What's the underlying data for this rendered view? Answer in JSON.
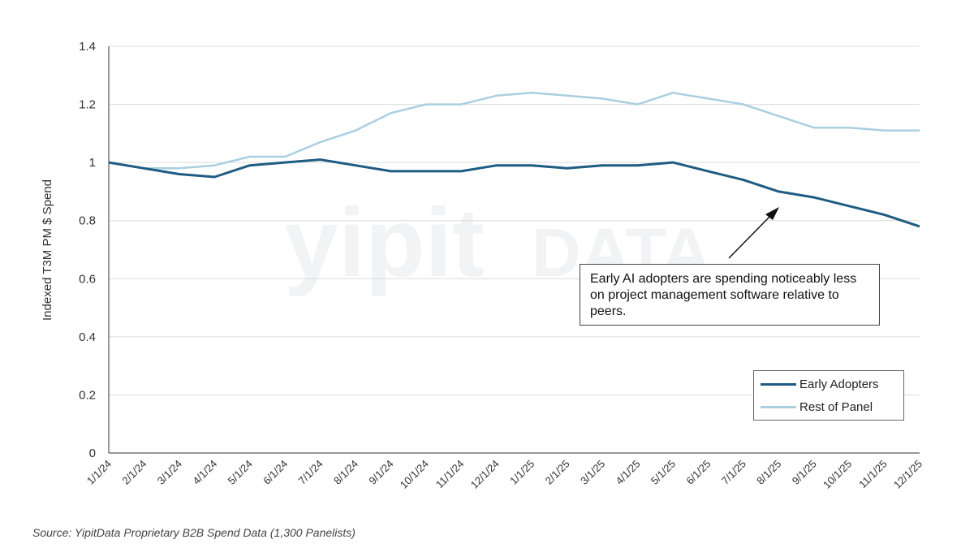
{
  "chart_data": {
    "type": "line",
    "ylabel": "Indexed T3M PM $ Spend",
    "ylim": [
      0,
      1.4
    ],
    "yticks": [
      "0",
      "0.2",
      "0.4",
      "0.6",
      "0.8",
      "1",
      "1.2",
      "1.4"
    ],
    "grid": true,
    "legend_position": "bottom-right",
    "categories": [
      "1/1/24",
      "2/1/24",
      "3/1/24",
      "4/1/24",
      "5/1/24",
      "6/1/24",
      "7/1/24",
      "8/1/24",
      "9/1/24",
      "10/1/24",
      "11/1/24",
      "12/1/24",
      "1/1/25",
      "2/1/25",
      "3/1/25",
      "4/1/25",
      "5/1/25",
      "6/1/25",
      "7/1/25",
      "8/1/25",
      "9/1/25",
      "10/1/25",
      "11/1/25",
      "12/1/25"
    ],
    "series": [
      {
        "name": "Early Adopters",
        "color": "#1f5c82",
        "values": [
          1.0,
          0.98,
          0.96,
          0.95,
          0.99,
          1.0,
          1.01,
          0.99,
          0.97,
          0.97,
          0.97,
          0.99,
          0.99,
          0.98,
          0.99,
          0.99,
          1.0,
          0.97,
          0.94,
          0.9,
          0.88,
          0.85,
          0.82,
          0.78
        ]
      },
      {
        "name": "Rest of Panel",
        "color": "#a9cfe0",
        "values": [
          1.0,
          0.98,
          0.98,
          0.99,
          1.02,
          1.02,
          1.07,
          1.11,
          1.17,
          1.2,
          1.2,
          1.23,
          1.24,
          1.23,
          1.22,
          1.2,
          1.24,
          1.22,
          1.2,
          1.16,
          1.12,
          1.12,
          1.11,
          1.11
        ]
      }
    ],
    "annotation": "Early AI adopters are spending noticeably less on project management software relative to peers.",
    "watermark": {
      "brand": "yipit",
      "suffix": "DATA"
    }
  },
  "source": "Source: YipitData Proprietary B2B Spend Data (1,300 Panelists)"
}
